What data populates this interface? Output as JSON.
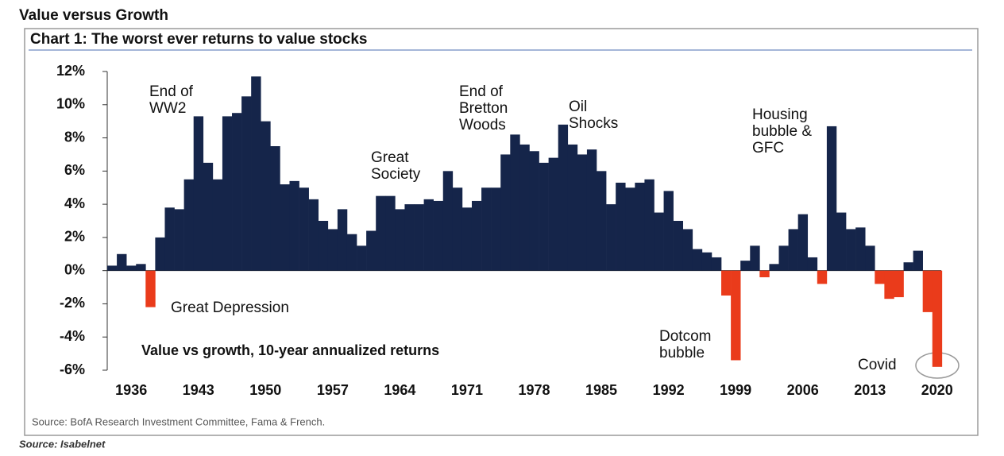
{
  "chart_data": {
    "type": "bar",
    "page_title": "Value versus Growth",
    "title": "Chart 1: The worst ever returns to value stocks",
    "subtitle": "Value vs growth, 10-year annualized returns",
    "source": "Source:  BofA Research Investment Committee, Fama & French.",
    "credit": "Source: Isabelnet",
    "positive_color": "#15254a",
    "negative_color": "#ea3b1b",
    "x": [
      1934,
      1935,
      1936,
      1937,
      1938,
      1939,
      1940,
      1941,
      1942,
      1943,
      1944,
      1945,
      1946,
      1947,
      1948,
      1949,
      1950,
      1951,
      1952,
      1953,
      1954,
      1955,
      1956,
      1957,
      1958,
      1959,
      1960,
      1961,
      1962,
      1963,
      1964,
      1965,
      1966,
      1967,
      1968,
      1969,
      1970,
      1971,
      1972,
      1973,
      1974,
      1975,
      1976,
      1977,
      1978,
      1979,
      1980,
      1981,
      1982,
      1983,
      1984,
      1985,
      1986,
      1987,
      1988,
      1989,
      1990,
      1991,
      1992,
      1993,
      1994,
      1995,
      1996,
      1997,
      1998,
      1999,
      2000,
      2001,
      2002,
      2003,
      2004,
      2005,
      2006,
      2007,
      2008,
      2009,
      2010,
      2011,
      2012,
      2013,
      2014,
      2015,
      2016,
      2017,
      2018,
      2019,
      2020
    ],
    "values": [
      0.3,
      1.0,
      0.3,
      0.4,
      -2.2,
      2.0,
      3.8,
      3.7,
      5.5,
      9.3,
      6.5,
      5.5,
      9.3,
      9.5,
      10.5,
      11.7,
      9.0,
      7.5,
      5.2,
      5.4,
      5.0,
      4.3,
      3.0,
      2.5,
      3.7,
      2.2,
      1.5,
      2.4,
      4.5,
      4.5,
      3.7,
      4.0,
      4.0,
      4.3,
      4.2,
      6.0,
      5.0,
      3.8,
      4.2,
      5.0,
      5.0,
      7.0,
      8.2,
      7.6,
      7.2,
      6.5,
      6.8,
      8.8,
      7.6,
      7.0,
      7.3,
      6.0,
      4.0,
      5.3,
      5.0,
      5.3,
      5.5,
      3.5,
      4.8,
      3.0,
      2.5,
      1.3,
      1.1,
      0.8,
      -1.5,
      -5.4,
      0.6,
      1.5,
      -0.4,
      0.4,
      1.5,
      2.5,
      3.4,
      0.8,
      -0.8,
      8.7,
      3.5,
      2.5,
      2.6,
      1.5,
      -0.8,
      -1.7,
      -1.6,
      0.5,
      1.2,
      -2.5,
      -5.8
    ],
    "xlim": [
      1933.5,
      2022.5
    ],
    "ylim": [
      -6,
      12
    ],
    "xticks": [
      1936,
      1943,
      1950,
      1957,
      1964,
      1971,
      1978,
      1985,
      1992,
      1999,
      2006,
      2013,
      2020
    ],
    "yticks": [
      {
        "value": -6,
        "label": "-6%"
      },
      {
        "value": -4,
        "label": "-4%"
      },
      {
        "value": -2,
        "label": "-2%"
      },
      {
        "value": 0,
        "label": "0%"
      },
      {
        "value": 2,
        "label": "2%"
      },
      {
        "value": 4,
        "label": "4%"
      },
      {
        "value": 6,
        "label": "6%"
      },
      {
        "value": 8,
        "label": "8%"
      },
      {
        "value": 10,
        "label": "10%"
      },
      {
        "value": 12,
        "label": "12%"
      }
    ],
    "annotations": [
      {
        "text": [
          "End of",
          "WW2"
        ]
      },
      {
        "text": [
          "Great Depression"
        ]
      },
      {
        "text": [
          "Great",
          "Society"
        ]
      },
      {
        "text": [
          "End of",
          "Bretton",
          "Woods"
        ]
      },
      {
        "text": [
          "Oil",
          "Shocks"
        ]
      },
      {
        "text": [
          "Housing",
          "bubble &",
          "GFC"
        ]
      },
      {
        "text": [
          "Dotcom",
          "bubble"
        ]
      },
      {
        "text": [
          "Covid"
        ]
      }
    ]
  }
}
